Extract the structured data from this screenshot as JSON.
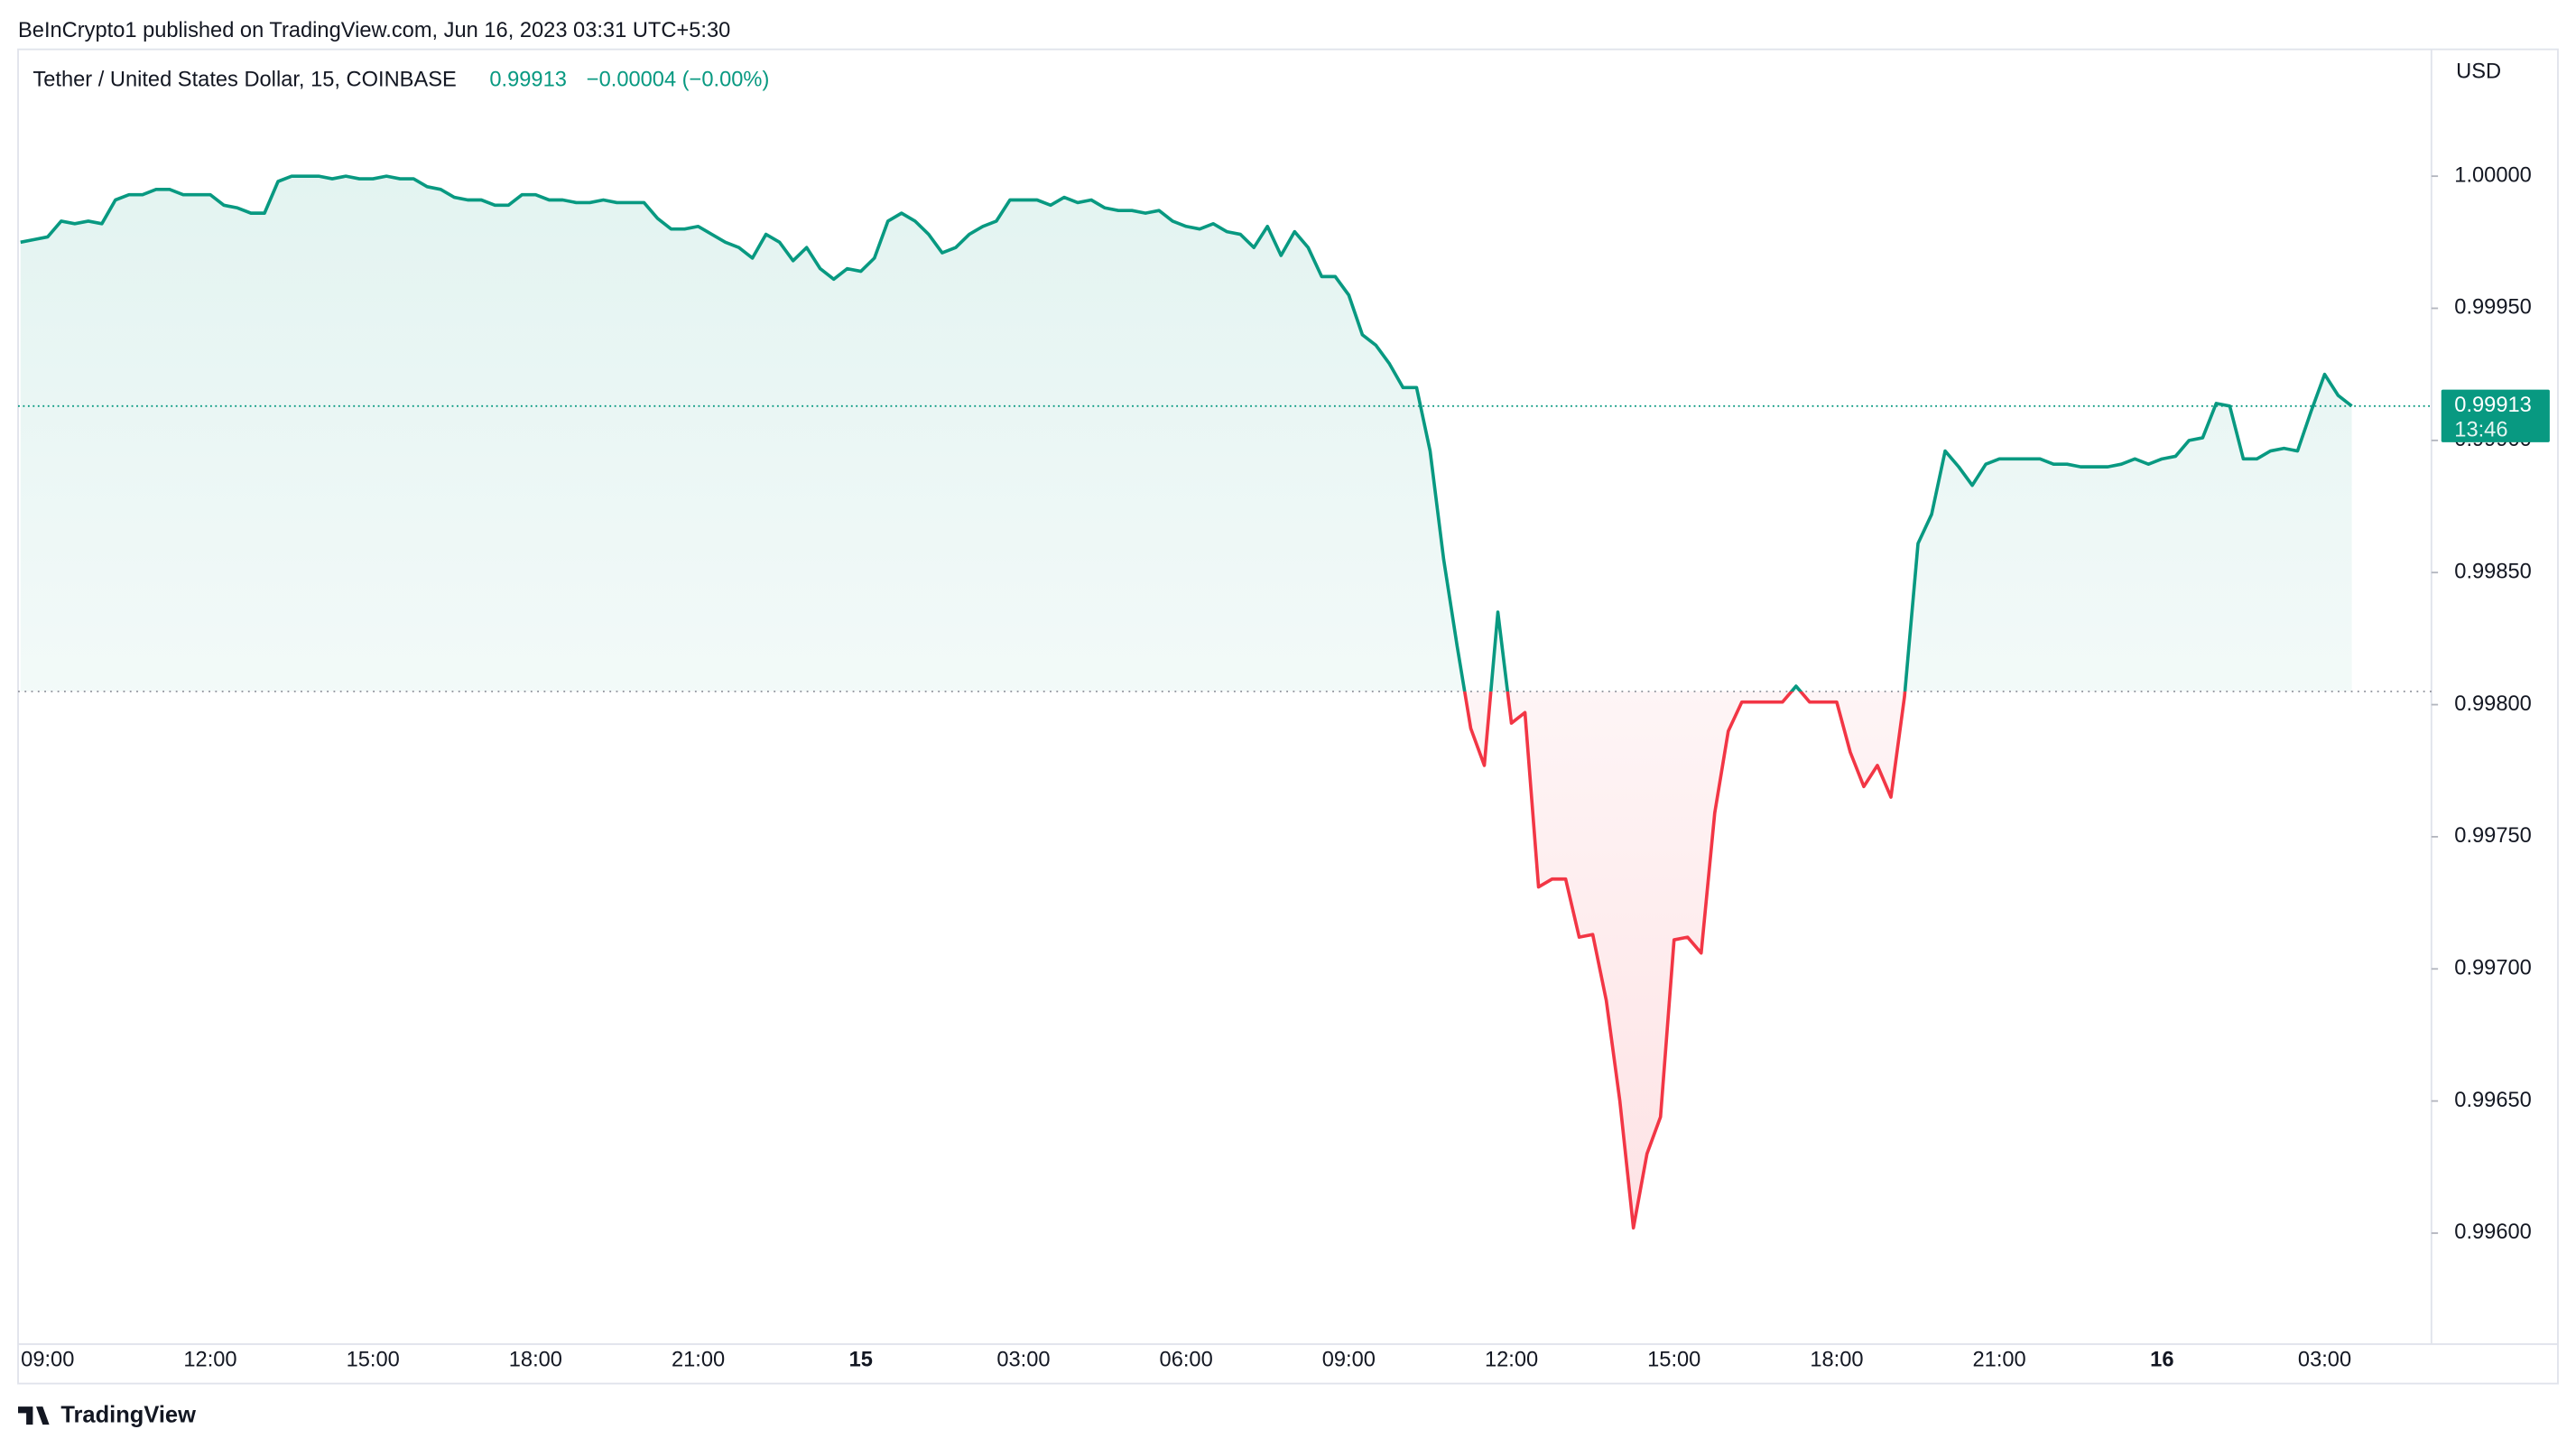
{
  "header": {
    "published": "BeInCrypto1 published on TradingView.com, Jun 16, 2023 03:31 UTC+5:30"
  },
  "footer": {
    "brand": "TradingView"
  },
  "chart_data": {
    "type": "baseline",
    "title": "Tether / United States Dollar, 15, COINBASE",
    "last_value": 0.99913,
    "change_text": "−0.00004 (−0.00%)",
    "countdown": "13:46",
    "currency": "USD",
    "baseline": 0.99805,
    "color_above": "#089981",
    "color_below": "#f23645",
    "categories": [
      null,
      null,
      "09:00",
      null,
      null,
      null,
      null,
      null,
      null,
      null,
      null,
      null,
      null,
      null,
      "12:00",
      null,
      null,
      null,
      null,
      null,
      null,
      null,
      null,
      null,
      null,
      null,
      "15:00",
      null,
      null,
      null,
      null,
      null,
      null,
      null,
      null,
      null,
      null,
      null,
      "18:00",
      null,
      null,
      null,
      null,
      null,
      null,
      null,
      null,
      null,
      null,
      null,
      "21:00",
      null,
      null,
      null,
      null,
      null,
      null,
      null,
      null,
      null,
      null,
      null,
      "15",
      null,
      null,
      null,
      null,
      null,
      null,
      null,
      null,
      null,
      null,
      null,
      "03:00",
      null,
      null,
      null,
      null,
      null,
      null,
      null,
      null,
      null,
      null,
      null,
      "06:00",
      null,
      null,
      null,
      null,
      null,
      null,
      null,
      null,
      null,
      null,
      null,
      "09:00",
      null,
      null,
      null,
      null,
      null,
      null,
      null,
      null,
      null,
      null,
      null,
      "12:00",
      null,
      null,
      null,
      null,
      null,
      null,
      null,
      null,
      null,
      null,
      null,
      "15:00",
      null,
      null,
      null,
      null,
      null,
      null,
      null,
      null,
      null,
      null,
      null,
      "18:00",
      null,
      null,
      null,
      null,
      null,
      null,
      null,
      null,
      null,
      null,
      null,
      "21:00",
      null,
      null,
      null,
      null,
      null,
      null,
      null,
      null,
      null,
      null,
      null,
      "16",
      null,
      null,
      null,
      null,
      null,
      null,
      null,
      null,
      null,
      null,
      null,
      "03:00",
      null,
      null
    ],
    "values": [
      0.99975,
      0.99976,
      0.99977,
      0.99983,
      0.99982,
      0.99983,
      0.99982,
      0.99991,
      0.99993,
      0.99993,
      0.99995,
      0.99995,
      0.99993,
      0.99993,
      0.99993,
      0.99989,
      0.99988,
      0.99986,
      0.99986,
      0.99998,
      1.0,
      1.0,
      1.0,
      0.99999,
      1.0,
      0.99999,
      0.99999,
      1.0,
      0.99999,
      0.99999,
      0.99996,
      0.99995,
      0.99992,
      0.99991,
      0.99991,
      0.99989,
      0.99989,
      0.99993,
      0.99993,
      0.99991,
      0.99991,
      0.9999,
      0.9999,
      0.99991,
      0.9999,
      0.9999,
      0.9999,
      0.99984,
      0.9998,
      0.9998,
      0.99981,
      0.99978,
      0.99975,
      0.99973,
      0.99969,
      0.99978,
      0.99975,
      0.99968,
      0.99973,
      0.99965,
      0.99961,
      0.99965,
      0.99964,
      0.99969,
      0.99983,
      0.99986,
      0.99983,
      0.99978,
      0.99971,
      0.99973,
      0.99978,
      0.99981,
      0.99983,
      0.99991,
      0.99991,
      0.99991,
      0.99989,
      0.99992,
      0.9999,
      0.99991,
      0.99988,
      0.99987,
      0.99987,
      0.99986,
      0.99987,
      0.99983,
      0.99981,
      0.9998,
      0.99982,
      0.99979,
      0.99978,
      0.99973,
      0.99981,
      0.9997,
      0.99979,
      0.99973,
      0.99962,
      0.99962,
      0.99955,
      0.9994,
      0.99936,
      0.99929,
      0.9992,
      0.9992,
      0.99896,
      0.99855,
      0.99822,
      0.99791,
      0.99777,
      0.99835,
      0.99793,
      0.99797,
      0.99731,
      0.99734,
      0.99734,
      0.99712,
      0.99713,
      0.99688,
      0.9965,
      0.99602,
      0.9963,
      0.99644,
      0.99711,
      0.99712,
      0.99706,
      0.99759,
      0.9979,
      0.99801,
      0.99801,
      0.99801,
      0.99801,
      0.99807,
      0.99801,
      0.99801,
      0.99801,
      0.99782,
      0.99769,
      0.99777,
      0.99765,
      0.99803,
      0.99861,
      0.99872,
      0.99896,
      0.9989,
      0.99883,
      0.99891,
      0.99893,
      0.99893,
      0.99893,
      0.99893,
      0.99891,
      0.99891,
      0.9989,
      0.9989,
      0.9989,
      0.99891,
      0.99893,
      0.99891,
      0.99893,
      0.99894,
      0.999,
      0.99901,
      0.99914,
      0.99913,
      0.99893,
      0.99893,
      0.99896,
      0.99897,
      0.99896,
      0.99911,
      0.99925,
      0.99917,
      0.99913
    ],
    "ylim": [
      0.99558,
      1.00048
    ],
    "yticks": [
      {
        "value": 0.996,
        "label": "0.99600"
      },
      {
        "value": 0.9965,
        "label": "0.99650"
      },
      {
        "value": 0.997,
        "label": "0.99700"
      },
      {
        "value": 0.9975,
        "label": "0.99750"
      },
      {
        "value": 0.998,
        "label": "0.99800"
      },
      {
        "value": 0.9985,
        "label": "0.99850"
      },
      {
        "value": 0.999,
        "label": "0.99900"
      },
      {
        "value": 0.9995,
        "label": "0.99950"
      },
      {
        "value": 1.0,
        "label": "1.00000"
      }
    ]
  }
}
